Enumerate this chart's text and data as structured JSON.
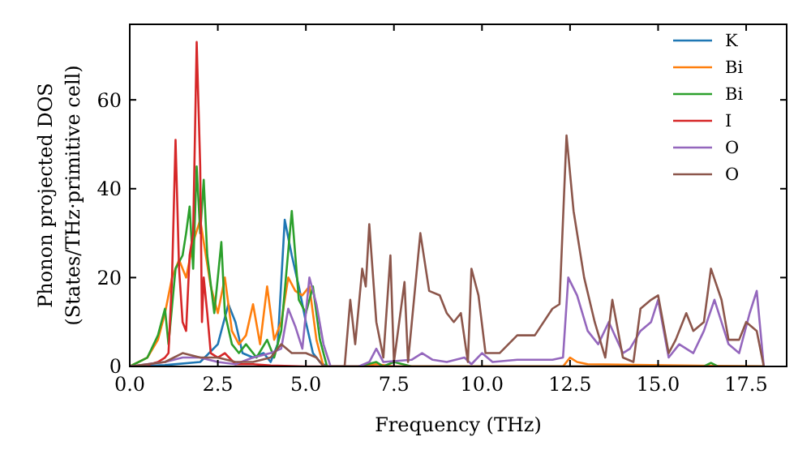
{
  "chart_data": {
    "type": "line",
    "xlabel": "Frequency (THz)",
    "ylabel": "Phonon projected DOS\n(States/THz·primitive cell)",
    "xlim": [
      0,
      18.65
    ],
    "ylim": [
      0,
      77
    ],
    "xticks": [
      {
        "value": 0,
        "label": "0.0"
      },
      {
        "value": 2.5,
        "label": "2.5"
      },
      {
        "value": 5,
        "label": "5.0"
      },
      {
        "value": 7.5,
        "label": "7.5"
      },
      {
        "value": 10,
        "label": "10.0"
      },
      {
        "value": 12.5,
        "label": "12.5"
      },
      {
        "value": 15,
        "label": "15.0"
      },
      {
        "value": 17.5,
        "label": "17.5"
      }
    ],
    "yticks": [
      0,
      20,
      40,
      60
    ],
    "legend": "top right",
    "grid": false,
    "series": [
      {
        "name": "K",
        "color": "#1f77b4",
        "x": [
          0,
          1,
          2,
          2.5,
          2.8,
          3,
          3.2,
          3.5,
          3.8,
          4,
          4.2,
          4.4,
          4.6,
          4.8,
          5,
          5.2,
          5.4,
          5.6
        ],
        "values": [
          0,
          0.3,
          1,
          5,
          14,
          10,
          3,
          2,
          3,
          1,
          5,
          33,
          25,
          18,
          10,
          3,
          1,
          0
        ]
      },
      {
        "name": "Bi",
        "color": "#ff7f0e",
        "x": [
          0,
          0.5,
          0.8,
          1,
          1.2,
          1.4,
          1.6,
          1.8,
          2,
          2.1,
          2.3,
          2.5,
          2.7,
          2.9,
          3.1,
          3.3,
          3.5,
          3.7,
          3.9,
          4.1,
          4.3,
          4.5,
          4.7,
          4.9,
          5.1,
          5.3,
          5.5,
          6.5,
          7,
          7.5,
          12.3,
          12.5,
          12.7,
          13,
          18
        ],
        "values": [
          0,
          2,
          6,
          12,
          20,
          24,
          20,
          28,
          33,
          28,
          18,
          12,
          20,
          8,
          5,
          7,
          14,
          5,
          18,
          6,
          10,
          20,
          17,
          16,
          18,
          6,
          0,
          0,
          0.5,
          0,
          0,
          2,
          1,
          0.5,
          0
        ]
      },
      {
        "name": "Bi",
        "color": "#2ca02c",
        "x": [
          0,
          0.5,
          0.8,
          1,
          1.1,
          1.3,
          1.5,
          1.6,
          1.7,
          1.8,
          1.9,
          2,
          2.1,
          2.2,
          2.4,
          2.6,
          2.7,
          2.9,
          3.1,
          3.3,
          3.6,
          3.9,
          4.1,
          4.3,
          4.5,
          4.6,
          4.8,
          5,
          5.2,
          5.4,
          5.6,
          6.5,
          7,
          7.2,
          7.5,
          8,
          16.3,
          16.5,
          16.7,
          18
        ],
        "values": [
          0,
          2,
          7,
          13,
          5,
          22,
          25,
          30,
          36,
          22,
          45,
          30,
          42,
          25,
          12,
          28,
          12,
          5,
          3,
          5,
          2,
          6,
          2,
          8,
          26,
          35,
          15,
          12,
          18,
          6,
          0,
          0,
          1,
          0,
          1,
          0,
          0,
          0.8,
          0,
          0
        ]
      },
      {
        "name": "I",
        "color": "#d62728",
        "x": [
          0,
          0.5,
          0.8,
          1,
          1.1,
          1.2,
          1.3,
          1.4,
          1.5,
          1.6,
          1.7,
          1.8,
          1.9,
          2,
          2.05,
          2.1,
          2.2,
          2.3,
          2.5,
          2.7,
          3,
          3.5,
          4,
          5,
          18
        ],
        "values": [
          0,
          0.3,
          1,
          2,
          3,
          20,
          51,
          22,
          10,
          8,
          25,
          30,
          73,
          45,
          10,
          20,
          12,
          3,
          2,
          3,
          0.5,
          0.5,
          0.2,
          0,
          0
        ]
      },
      {
        "name": "O",
        "color": "#9467bd",
        "x": [
          0,
          1,
          1.5,
          2,
          2.5,
          3,
          3.5,
          4,
          4.3,
          4.5,
          4.7,
          4.9,
          5.1,
          5.3,
          5.5,
          5.7,
          6.5,
          6.8,
          7,
          7.2,
          8,
          8.3,
          8.6,
          9,
          9.5,
          9.7,
          10,
          10.3,
          11,
          12,
          12.3,
          12.45,
          12.7,
          13,
          13.3,
          13.6,
          14,
          14.2,
          14.5,
          14.8,
          15,
          15.3,
          15.6,
          16,
          16.3,
          16.6,
          17,
          17.3,
          17.6,
          17.8,
          18
        ],
        "values": [
          0,
          1,
          2,
          2,
          1,
          0.5,
          2,
          3,
          4,
          13,
          9,
          4,
          20,
          14,
          5,
          0,
          0,
          1,
          4,
          1,
          1.5,
          3,
          1.5,
          1,
          2,
          0.5,
          3,
          1,
          1.5,
          1.5,
          2,
          20,
          16,
          8,
          5,
          10,
          3,
          4,
          8,
          10,
          15,
          2,
          5,
          3,
          8,
          15,
          5,
          3,
          12,
          17,
          0
        ]
      },
      {
        "name": "O",
        "color": "#8c564b",
        "x": [
          0,
          1,
          1.5,
          2,
          2.5,
          3,
          3.5,
          4,
          4.3,
          4.6,
          5,
          5.3,
          5.5,
          6.1,
          6.26,
          6.4,
          6.6,
          6.7,
          6.8,
          7,
          7.2,
          7.4,
          7.5,
          7.8,
          7.9,
          8.25,
          8.5,
          8.8,
          9,
          9.2,
          9.4,
          9.6,
          9.7,
          9.9,
          10.1,
          10.5,
          11,
          11.5,
          12,
          12.2,
          12.4,
          12.6,
          12.9,
          13.2,
          13.5,
          13.7,
          14,
          14.3,
          14.5,
          14.8,
          15,
          15.3,
          15.5,
          15.8,
          16,
          16.3,
          16.5,
          16.8,
          17,
          17.3,
          17.5,
          17.8,
          18
        ],
        "values": [
          0,
          1,
          3,
          2,
          2,
          1,
          1,
          2,
          5,
          3,
          3,
          2,
          0,
          0,
          15,
          5,
          22,
          18,
          32,
          10,
          2,
          25,
          1,
          19,
          1,
          30,
          17,
          16,
          12,
          10,
          12,
          1,
          22,
          16,
          3,
          3,
          7,
          7,
          13,
          14,
          52,
          35,
          20,
          10,
          2,
          15,
          2,
          1,
          13,
          15,
          16,
          3,
          6,
          12,
          8,
          10,
          22,
          15,
          6,
          6,
          10,
          8,
          0
        ]
      }
    ]
  }
}
